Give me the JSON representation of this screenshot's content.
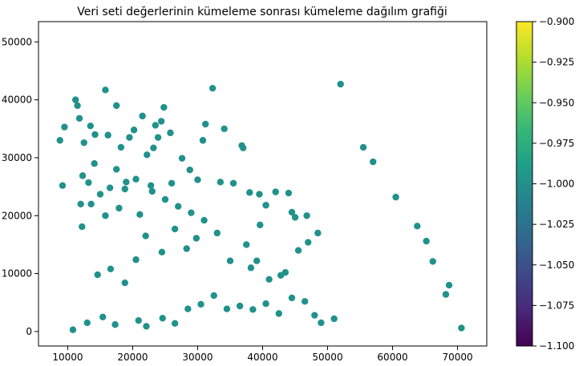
{
  "chart_data": {
    "type": "scatter",
    "title": "Veri seti değerlerinin kümeleme sonrası kümeleme dağılım grafiği",
    "xlabel": "",
    "ylabel": "",
    "xlim": [
      5500,
      74500
    ],
    "ylim": [
      -2500,
      53500
    ],
    "x_ticks": [
      10000,
      20000,
      30000,
      40000,
      50000,
      60000,
      70000
    ],
    "x_tick_labels": [
      "10000",
      "20000",
      "30000",
      "40000",
      "50000",
      "60000",
      "70000"
    ],
    "y_ticks": [
      0,
      10000,
      20000,
      30000,
      40000,
      50000
    ],
    "y_tick_labels": [
      "0",
      "10000",
      "20000",
      "30000",
      "40000",
      "50000"
    ],
    "grid": false,
    "point_color": "#21918c",
    "colorbar": {
      "min": -1.1,
      "max": -0.9,
      "ticks": [
        -0.9,
        -0.925,
        -0.95,
        -0.975,
        -1.0,
        -1.025,
        -1.05,
        -1.075,
        -1.1
      ],
      "tick_labels": [
        "−0.900",
        "−0.925",
        "−0.950",
        "−0.975",
        "−1.000",
        "−1.025",
        "−1.050",
        "−1.075",
        "−1.100"
      ],
      "colormap": "viridis",
      "colors": [
        "#440154",
        "#482878",
        "#3e4989",
        "#31688e",
        "#26828e",
        "#1f9e89",
        "#35b779",
        "#6ece58",
        "#b5de2b",
        "#fde725"
      ]
    },
    "series": [
      {
        "x": [
          10800,
          13000,
          15400,
          17300,
          20900,
          22100,
          24600,
          26500,
          28500,
          30500,
          32500,
          34500,
          36500,
          38500,
          40500,
          42500,
          44500,
          46500,
          48000,
          49000,
          51000,
          52000,
          55500,
          57000,
          60500,
          63800,
          65200,
          66200,
          68200,
          68700,
          70600,
          41000,
          43500,
          45500,
          47000,
          37500,
          33000,
          31000,
          29000,
          27000,
          25000,
          23000,
          19000,
          12000,
          9500,
          8800,
          11500,
          13500,
          15800,
          17500,
          19500,
          21500,
          23500,
          24800,
          11200,
          11800,
          12500,
          14200,
          16200,
          18200,
          20200,
          22200,
          28800,
          27600,
          32300,
          37000,
          36800,
          34100,
          30800,
          24400,
          25800,
          23900,
          23200,
          14100,
          31200,
          12300,
          17500,
          13200,
          15000,
          16500,
          18800,
          20500,
          22800,
          26000,
          30000,
          33500,
          35500,
          38000,
          39500,
          42000,
          44000,
          46800,
          48500,
          40500,
          45000,
          26500,
          35000,
          24500,
          20500,
          16600,
          14600,
          18800,
          38200,
          39100,
          42800,
          22000,
          15800,
          28300,
          9200,
          12200,
          13600,
          17900,
          21100,
          29800,
          39600,
          44500
        ],
        "y": [
          300,
          1500,
          2500,
          1200,
          1900,
          900,
          2300,
          1400,
          3900,
          4700,
          6200,
          3900,
          4400,
          3800,
          4800,
          3100,
          5800,
          5200,
          2800,
          1500,
          2200,
          42700,
          31800,
          29300,
          23200,
          18200,
          15600,
          12100,
          6400,
          8000,
          600,
          9000,
          10200,
          14000,
          15400,
          15000,
          17000,
          19200,
          20500,
          21600,
          22800,
          24200,
          25800,
          22000,
          35300,
          33000,
          39000,
          35500,
          41700,
          39000,
          33500,
          37200,
          35600,
          38700,
          40000,
          36800,
          32600,
          34000,
          33900,
          31800,
          34800,
          30500,
          27900,
          29900,
          42000,
          31700,
          32100,
          35000,
          33000,
          36300,
          34300,
          33500,
          31700,
          29000,
          35800,
          26900,
          28000,
          25700,
          23700,
          24800,
          24600,
          26300,
          25200,
          25600,
          26200,
          25800,
          25600,
          24000,
          23700,
          24100,
          23900,
          20000,
          17000,
          21800,
          19700,
          17700,
          12200,
          13700,
          12400,
          10800,
          9800,
          8400,
          11000,
          12200,
          9700,
          16500,
          20000,
          14300,
          25200,
          18100,
          22000,
          21300,
          20200,
          16100,
          18400,
          20600
        ]
      }
    ]
  }
}
